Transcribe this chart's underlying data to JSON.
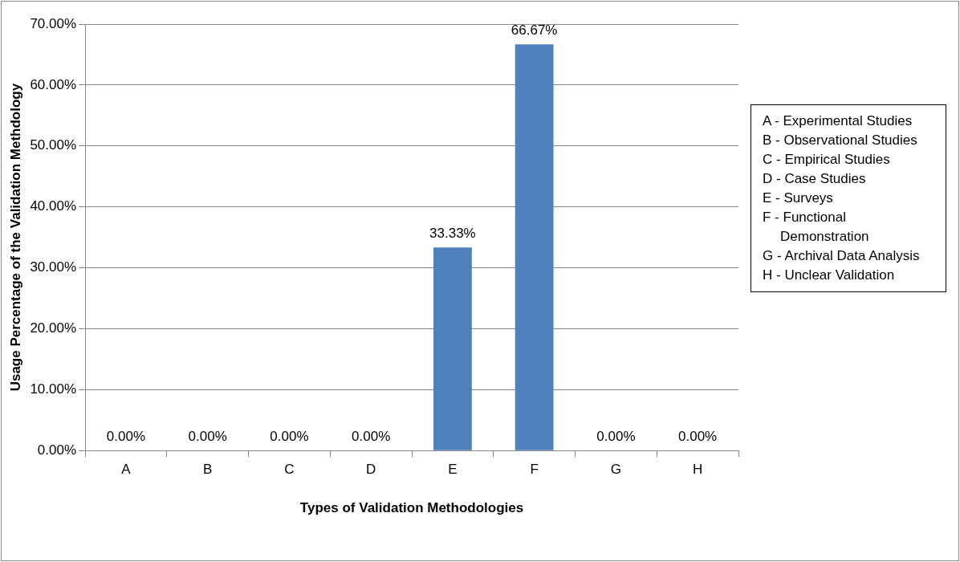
{
  "chart_data": {
    "type": "bar",
    "xlabel": "Types of Validation Methodologies",
    "ylabel": "Usage Percentage of the Validation Methdology",
    "categories": [
      "A",
      "B",
      "C",
      "D",
      "E",
      "F",
      "G",
      "H"
    ],
    "values": [
      0,
      0,
      0,
      0,
      33.33,
      66.67,
      0,
      0
    ],
    "value_labels": [
      "0.00%",
      "0.00%",
      "0.00%",
      "0.00%",
      "33.33%",
      "66.67%",
      "0.00%",
      "0.00%"
    ],
    "color": "#4f81bd",
    "ylim": [
      0,
      70
    ],
    "yticks": [
      {
        "value": 0,
        "label": "0.00%"
      },
      {
        "value": 10,
        "label": "10.00%"
      },
      {
        "value": 20,
        "label": "20.00%"
      },
      {
        "value": 30,
        "label": "30.00%"
      },
      {
        "value": 40,
        "label": "40.00%"
      },
      {
        "value": 50,
        "label": "50.00%"
      },
      {
        "value": 60,
        "label": "60.00%"
      },
      {
        "value": 70,
        "label": "70.00%"
      }
    ],
    "grid": "y",
    "legend": false,
    "annotations": [
      "A - Experimental Studies",
      "B - Observational Studies",
      "C - Empirical Studies",
      "D - Case Studies",
      "E - Surveys",
      "F - Functional Demonstration",
      "G - Archival Data Analysis",
      "H - Unclear Validation"
    ]
  }
}
